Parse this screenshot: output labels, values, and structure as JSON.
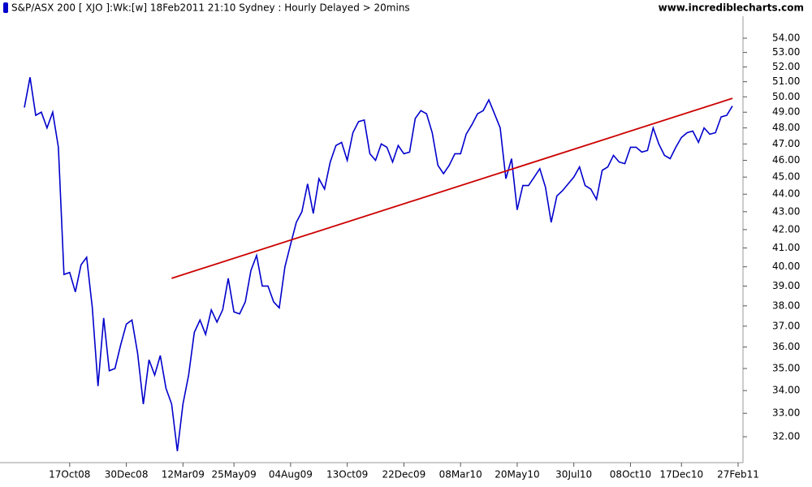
{
  "chart_data": {
    "type": "line",
    "title": "S&P/ASX 200 [ XJO ]:Wk:[w]  18Feb2011 21:10 Sydney : Hourly Delayed > 20mins",
    "watermark": "www.incrediblecharts.com",
    "log_scale": true,
    "grid": false,
    "categories": [
      null,
      null,
      null,
      null,
      null,
      null,
      null,
      null,
      "17Oct08",
      null,
      null,
      null,
      null,
      null,
      null,
      null,
      null,
      null,
      "30Dec08",
      null,
      null,
      null,
      null,
      null,
      null,
      null,
      null,
      null,
      "12Mar09",
      null,
      null,
      null,
      null,
      null,
      null,
      null,
      null,
      "25May09",
      null,
      null,
      null,
      null,
      null,
      null,
      null,
      null,
      null,
      "04Aug09",
      null,
      null,
      null,
      null,
      null,
      null,
      null,
      null,
      null,
      "13Oct09",
      null,
      null,
      null,
      null,
      null,
      null,
      null,
      null,
      null,
      "22Dec09",
      null,
      null,
      null,
      null,
      null,
      null,
      null,
      null,
      null,
      "08Mar10",
      null,
      null,
      null,
      null,
      null,
      null,
      null,
      null,
      null,
      "20May10",
      null,
      null,
      null,
      null,
      null,
      null,
      null,
      null,
      null,
      "30Jul10",
      null,
      null,
      null,
      null,
      null,
      null,
      null,
      null,
      null,
      "08Oct10",
      null,
      null,
      null,
      null,
      null,
      null,
      null,
      null,
      "17Dec10",
      null,
      null,
      null,
      null,
      null,
      null,
      null,
      null,
      null,
      "27Feb11"
    ],
    "series": [
      {
        "name": "XJO",
        "color": "#0000cc",
        "values": [
          49.3,
          51.3,
          48.8,
          49.0,
          48.0,
          49.0,
          46.8,
          39.6,
          39.7,
          38.7,
          40.1,
          40.5,
          37.9,
          34.2,
          37.4,
          34.9,
          35.0,
          36.1,
          37.1,
          37.3,
          35.7,
          33.4,
          35.4,
          34.7,
          35.6,
          34.1,
          33.4,
          31.4,
          33.4,
          34.7,
          36.7,
          37.3,
          36.6,
          37.8,
          37.2,
          37.8,
          39.4,
          37.7,
          37.6,
          38.2,
          39.8,
          40.6,
          39.0,
          39.0,
          38.2,
          37.9,
          40.0,
          41.2,
          42.4,
          43.0,
          44.6,
          42.9,
          44.9,
          44.3,
          45.9,
          46.9,
          47.1,
          46.0,
          47.7,
          48.4,
          48.5,
          46.4,
          46.0,
          47.0,
          46.8,
          45.9,
          46.9,
          46.4,
          46.5,
          48.6,
          49.1,
          48.9,
          47.7,
          45.7,
          45.2,
          45.7,
          46.4,
          46.4,
          47.6,
          48.2,
          48.9,
          49.1,
          49.8,
          48.9,
          48.0,
          44.9,
          46.1,
          43.1,
          44.5,
          44.5,
          45.0,
          45.5,
          44.4,
          42.4,
          43.9,
          44.2,
          44.6,
          45.0,
          45.6,
          44.5,
          44.3,
          43.7,
          45.4,
          45.6,
          46.3,
          45.9,
          45.8,
          46.8,
          46.8,
          46.5,
          46.6,
          48.0,
          47.0,
          46.3,
          46.1,
          46.8,
          47.4,
          47.7,
          47.8,
          47.1,
          48.0,
          47.6,
          47.7,
          48.7,
          48.8,
          49.4,
          null
        ]
      }
    ],
    "trendline": {
      "color": "#cc0000",
      "x": [
        26,
        125
      ],
      "values": [
        39.4,
        49.9
      ]
    },
    "ylim": [
      30.93,
      55.58
    ],
    "yticks": [
      {
        "value": 32,
        "label": "32.00"
      },
      {
        "value": 33,
        "label": "33.00"
      },
      {
        "value": 34,
        "label": "34.00"
      },
      {
        "value": 35,
        "label": "35.00"
      },
      {
        "value": 36,
        "label": "36.00"
      },
      {
        "value": 37,
        "label": "37.00"
      },
      {
        "value": 38,
        "label": "38.00"
      },
      {
        "value": 39,
        "label": "39.00"
      },
      {
        "value": 40,
        "label": "40.00"
      },
      {
        "value": 41,
        "label": "41.00"
      },
      {
        "value": 42,
        "label": "42.00"
      },
      {
        "value": 43,
        "label": "43.00"
      },
      {
        "value": 44,
        "label": "44.00"
      },
      {
        "value": 45,
        "label": "45.00"
      },
      {
        "value": 46,
        "label": "46.00"
      },
      {
        "value": 47,
        "label": "47.00"
      },
      {
        "value": 48,
        "label": "48.00"
      },
      {
        "value": 49,
        "label": "49.00"
      },
      {
        "value": 50,
        "label": "50.00"
      },
      {
        "value": 51,
        "label": "51.00"
      },
      {
        "value": 52,
        "label": "52.00"
      },
      {
        "value": 53,
        "label": "53.00"
      },
      {
        "value": 54,
        "label": "54.00"
      }
    ]
  }
}
